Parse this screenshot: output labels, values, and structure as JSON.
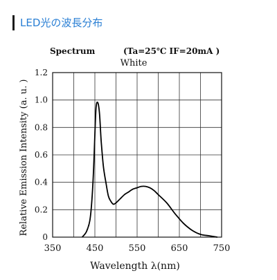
{
  "header": {
    "title": "LED光の波長分布"
  },
  "chart_data": {
    "type": "line",
    "spectrum_label": "Spectrum",
    "conditions": "(Ta=25℃  IF=20mA )",
    "title": "White",
    "xlabel": "Wavelength λ(nm)",
    "ylabel": "Relative Emission Intensity (a. u. )",
    "xlim": [
      350,
      750
    ],
    "ylim": [
      0,
      1.2
    ],
    "xticks": [
      "350",
      "450",
      "550",
      "650",
      "750"
    ],
    "yticks": [
      "0",
      "0.2",
      "0.4",
      "0.6",
      "0.8",
      "1.0",
      "1.2"
    ],
    "grid": true,
    "series": [
      {
        "x": [
          420,
          430,
          438,
          443,
          447,
          450,
          453,
          457,
          461,
          465,
          470,
          476,
          482,
          488,
          494,
          500,
          510,
          520,
          530,
          540,
          550,
          560,
          570,
          580,
          590,
          600,
          620,
          640,
          660,
          680,
          700,
          720,
          740
        ],
        "y": [
          0.0,
          0.04,
          0.12,
          0.27,
          0.5,
          0.75,
          0.95,
          0.98,
          0.9,
          0.7,
          0.52,
          0.4,
          0.3,
          0.26,
          0.24,
          0.25,
          0.28,
          0.31,
          0.33,
          0.35,
          0.36,
          0.37,
          0.37,
          0.36,
          0.34,
          0.31,
          0.25,
          0.17,
          0.1,
          0.05,
          0.02,
          0.01,
          0.0
        ]
      }
    ]
  }
}
